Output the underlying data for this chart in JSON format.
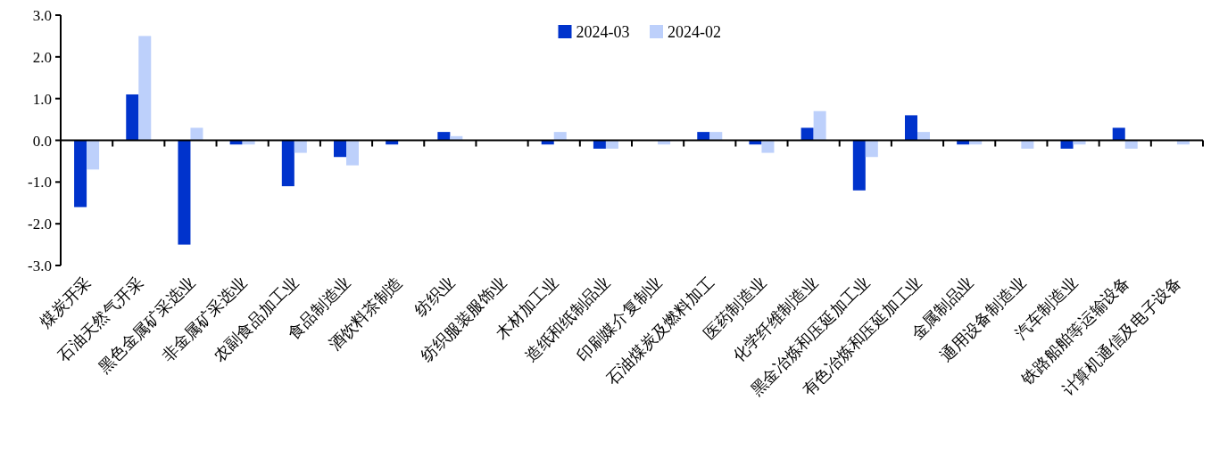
{
  "chart_data": {
    "type": "bar",
    "categories": [
      "煤炭开采",
      "石油天然气开采",
      "黑色金属矿采选业",
      "非金属矿采选业",
      "农副食品加工业",
      "食品制造业",
      "酒饮料茶制造",
      "纺织业",
      "纺织服装服饰业",
      "木材加工业",
      "造纸和纸制品业",
      "印刷媒介复制业",
      "石油煤炭及燃料加工",
      "医药制造业",
      "化学纤维制造业",
      "黑金冶炼和压延加工业",
      "有色冶炼和压延加工业",
      "金属制品业",
      "通用设备制造业",
      "汽车制造业",
      "铁路船舶等运输设备",
      "计算机通信及电子设备"
    ],
    "series": [
      {
        "name": "2024-03",
        "color": "#0033cc",
        "values": [
          -1.6,
          1.1,
          -2.5,
          -0.1,
          -1.1,
          -0.4,
          -0.1,
          0.2,
          0,
          -0.1,
          -0.2,
          0,
          0.2,
          -0.1,
          0.3,
          -1.2,
          0.6,
          -0.1,
          0,
          -0.2,
          0.3,
          0
        ]
      },
      {
        "name": "2024-02",
        "color": "#bdd0fb",
        "values": [
          -0.7,
          2.5,
          0.3,
          -0.1,
          -0.3,
          -0.6,
          0,
          0.1,
          0,
          0.2,
          -0.2,
          -0.1,
          0.2,
          -0.3,
          0.7,
          -0.4,
          0.2,
          -0.1,
          -0.2,
          -0.1,
          -0.2,
          -0.1
        ]
      }
    ],
    "ylim": [
      -3,
      3
    ],
    "yticks": [
      {
        "value": -3,
        "label": "-3.0"
      },
      {
        "value": -2,
        "label": "-2.0"
      },
      {
        "value": -1,
        "label": "-1.0"
      },
      {
        "value": 0,
        "label": "0.0"
      },
      {
        "value": 1,
        "label": "1.0"
      },
      {
        "value": 2,
        "label": "2.0"
      },
      {
        "value": 3,
        "label": "3.0"
      }
    ],
    "legend": "top"
  }
}
